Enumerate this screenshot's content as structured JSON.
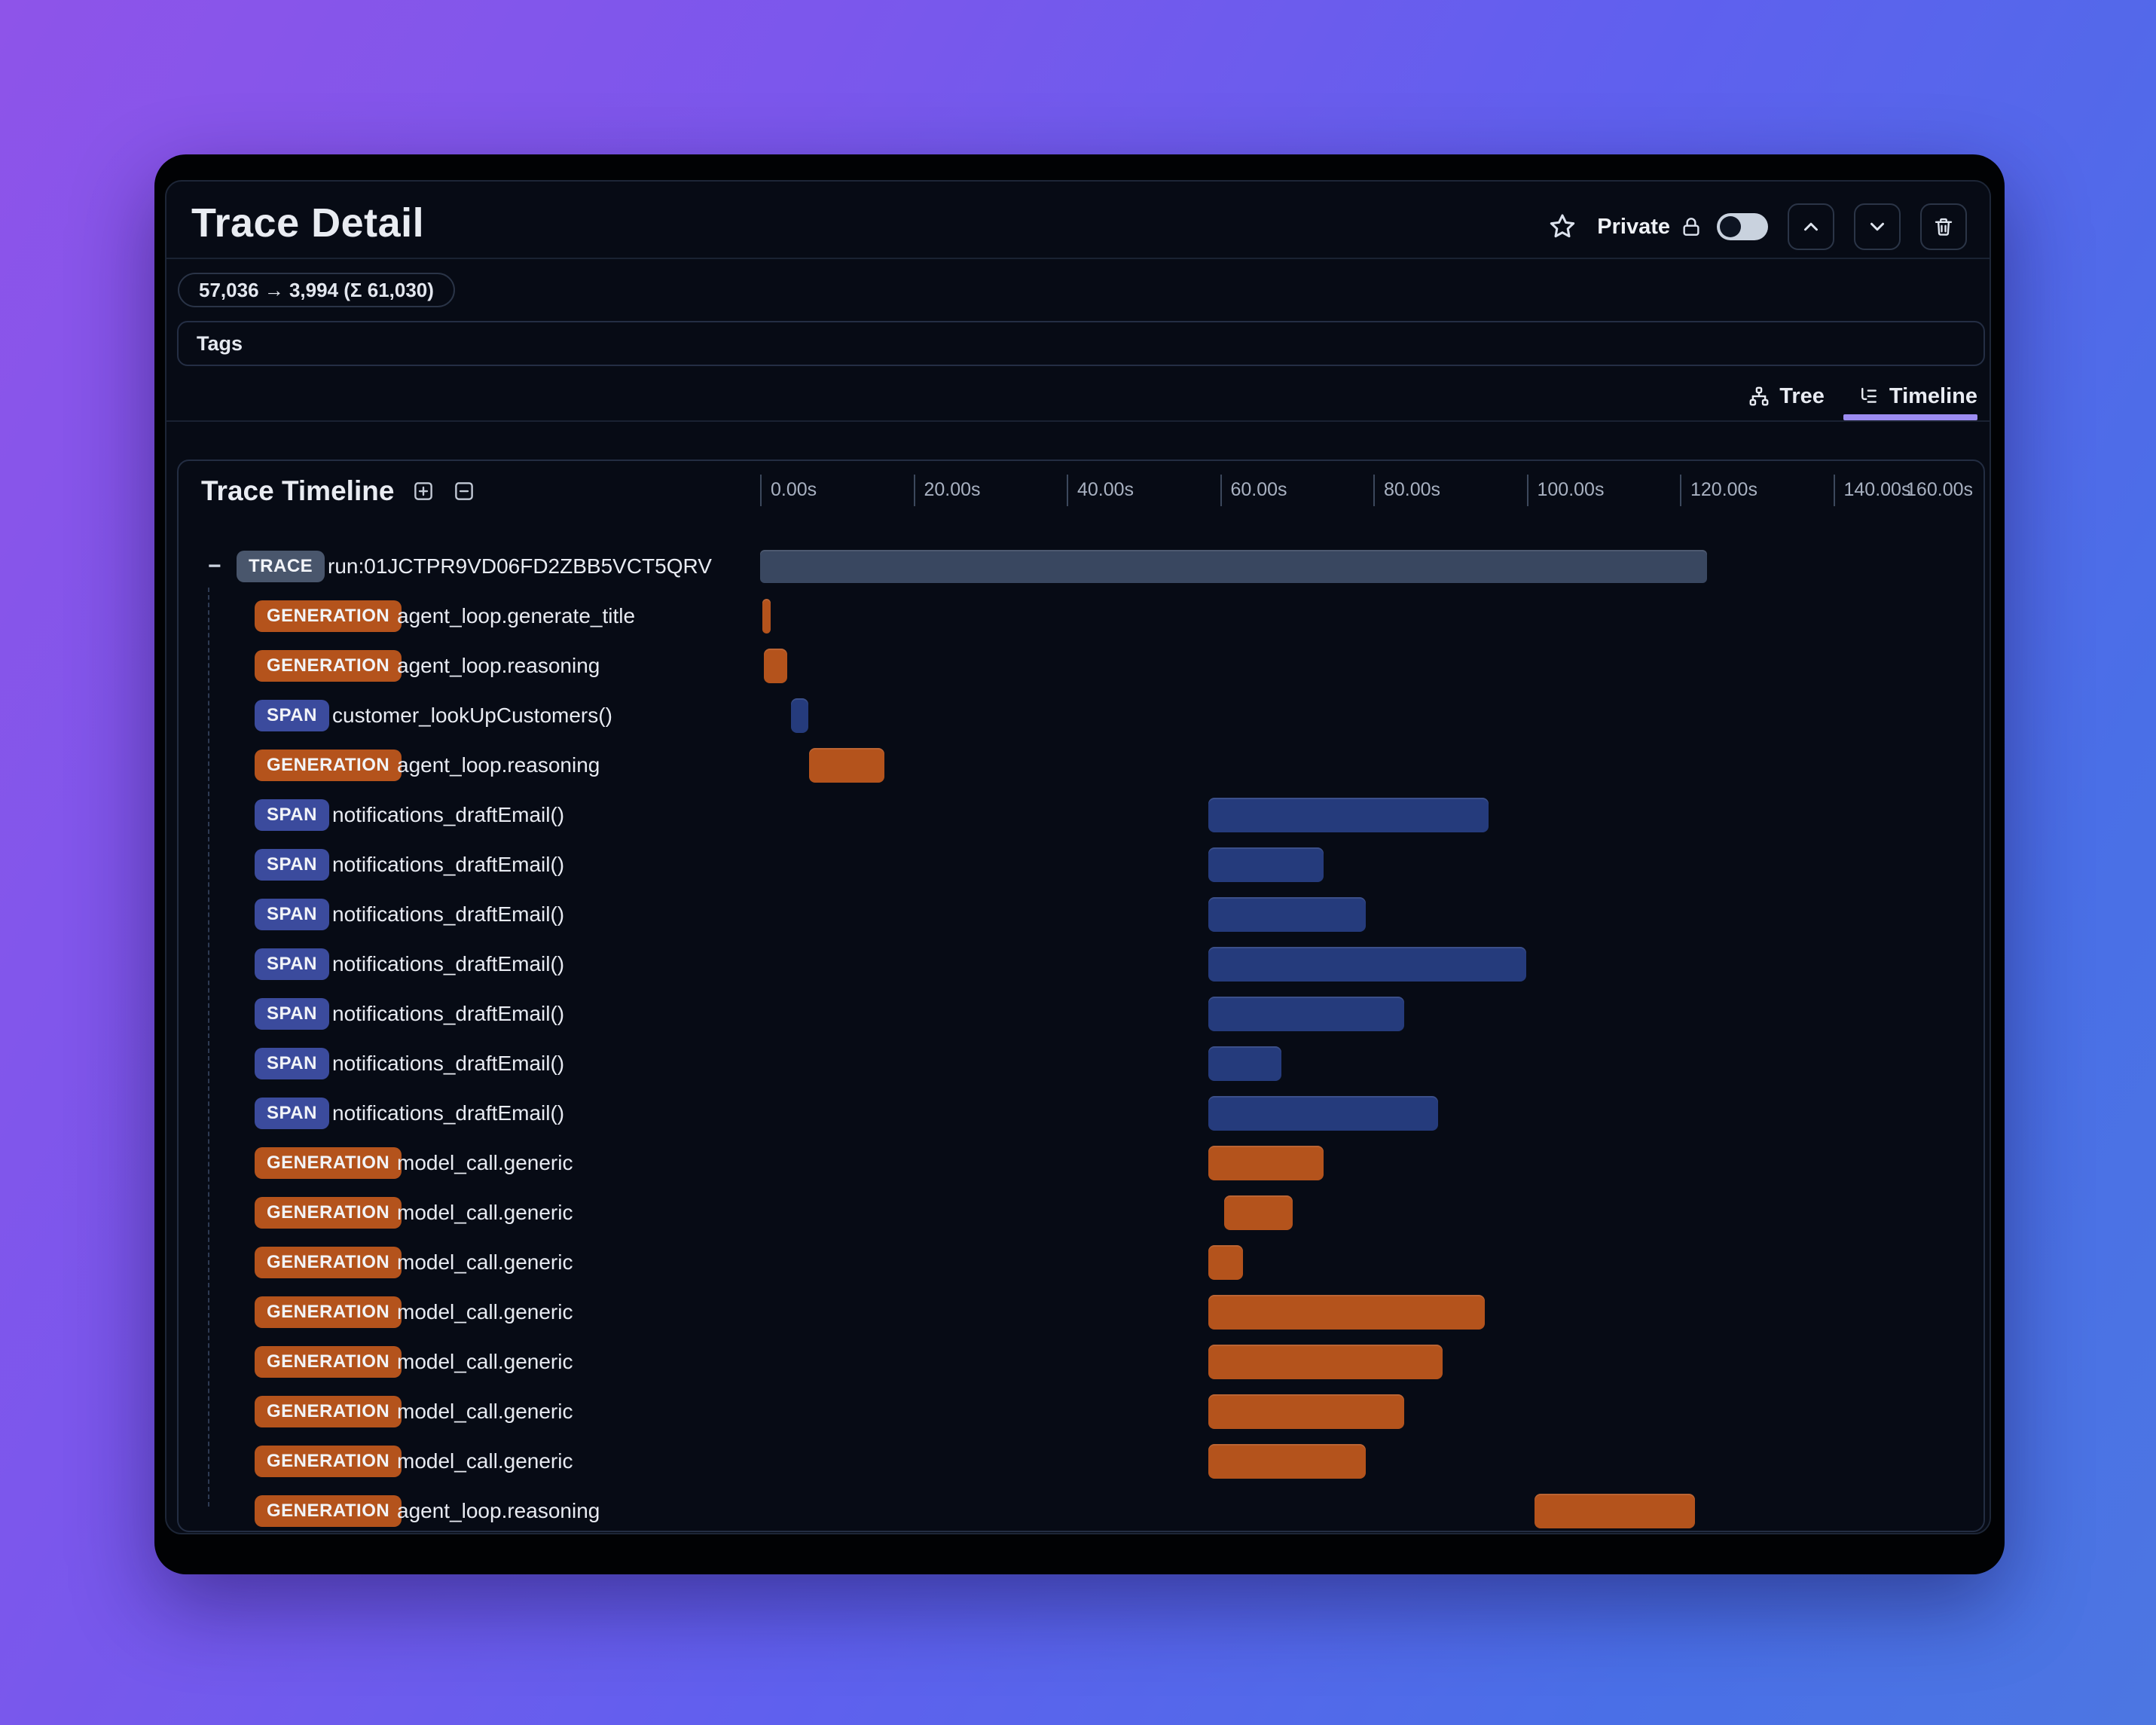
{
  "header": {
    "title": "Trace Detail",
    "private_label": "Private"
  },
  "token_badge": "57,036 → 3,994 (Σ 61,030)",
  "tags": {
    "label": "Tags"
  },
  "view_tabs": {
    "tree_label": "Tree",
    "timeline_label": "Timeline",
    "active": "Timeline"
  },
  "timeline": {
    "title": "Trace Timeline",
    "axis_ticks": [
      "0.00s",
      "20.00s",
      "40.00s",
      "60.00s",
      "80.00s",
      "100.00s",
      "120.00s",
      "140.00s",
      "160.00s"
    ],
    "axis_max_s": 160,
    "collapse_glyph": "−",
    "rows": [
      {
        "type": "TRACE",
        "label": "run:01JCTPR9VD06FD2ZBB5VCT5QRV",
        "start_s": 0,
        "end_s": 123.5
      },
      {
        "type": "GENERATION",
        "label": "agent_loop.generate_title",
        "start_s": 0.3,
        "end_s": 1.4
      },
      {
        "type": "GENERATION",
        "label": "agent_loop.reasoning",
        "start_s": 0.5,
        "end_s": 3.5
      },
      {
        "type": "SPAN",
        "label": "customer_lookUpCustomers()",
        "start_s": 4.0,
        "end_s": 6.3
      },
      {
        "type": "GENERATION",
        "label": "agent_loop.reasoning",
        "start_s": 6.4,
        "end_s": 16.2
      },
      {
        "type": "SPAN",
        "label": "notifications_draftEmail()",
        "start_s": 58.5,
        "end_s": 95.0
      },
      {
        "type": "SPAN",
        "label": "notifications_draftEmail()",
        "start_s": 58.5,
        "end_s": 73.5
      },
      {
        "type": "SPAN",
        "label": "notifications_draftEmail()",
        "start_s": 58.5,
        "end_s": 79.0
      },
      {
        "type": "SPAN",
        "label": "notifications_draftEmail()",
        "start_s": 58.5,
        "end_s": 100.0
      },
      {
        "type": "SPAN",
        "label": "notifications_draftEmail()",
        "start_s": 58.5,
        "end_s": 84.0
      },
      {
        "type": "SPAN",
        "label": "notifications_draftEmail()",
        "start_s": 58.5,
        "end_s": 68.0
      },
      {
        "type": "SPAN",
        "label": "notifications_draftEmail()",
        "start_s": 58.5,
        "end_s": 88.5
      },
      {
        "type": "GENERATION",
        "label": "model_call.generic",
        "start_s": 58.5,
        "end_s": 73.5
      },
      {
        "type": "GENERATION",
        "label": "model_call.generic",
        "start_s": 60.5,
        "end_s": 69.5
      },
      {
        "type": "GENERATION",
        "label": "model_call.generic",
        "start_s": 58.5,
        "end_s": 63.0
      },
      {
        "type": "GENERATION",
        "label": "model_call.generic",
        "start_s": 58.5,
        "end_s": 94.5
      },
      {
        "type": "GENERATION",
        "label": "model_call.generic",
        "start_s": 58.5,
        "end_s": 89.0
      },
      {
        "type": "GENERATION",
        "label": "model_call.generic",
        "start_s": 58.5,
        "end_s": 84.0
      },
      {
        "type": "GENERATION",
        "label": "model_call.generic",
        "start_s": 58.5,
        "end_s": 79.0
      },
      {
        "type": "GENERATION",
        "label": "agent_loop.reasoning",
        "start_s": 101.0,
        "end_s": 122.0
      }
    ]
  },
  "colors": {
    "trace_badge": "#49566c",
    "trace_bar": "#394760",
    "generation": "#b4531c",
    "span_badge": "#3b4b9d",
    "span_bar": "#253b7c",
    "accent_underline": "#9c8cf1",
    "panel_bg": "#070b15",
    "bg_gradient_start": "#8e54e9",
    "bg_gradient_end": "#4c76e2"
  }
}
